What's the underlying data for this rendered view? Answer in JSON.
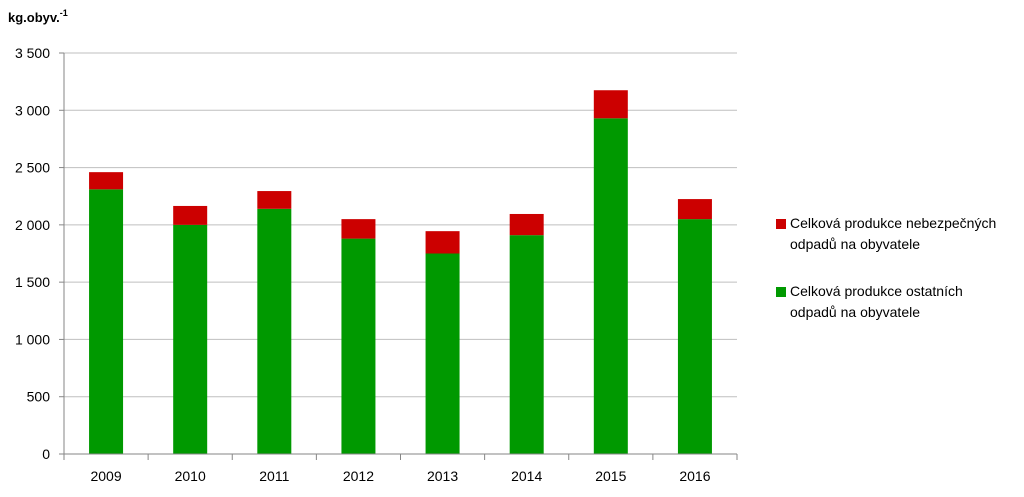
{
  "chart_data": {
    "type": "bar",
    "stacked": true,
    "ylabel": "kg.obyv.",
    "ylabel_superscript": "-1",
    "categories": [
      "2009",
      "2010",
      "2011",
      "2012",
      "2013",
      "2014",
      "2015",
      "2016"
    ],
    "series": [
      {
        "name_lines": [
          "Celková produkce ostatních",
          "odpadů na obyvatele"
        ],
        "color": "#009900",
        "values": [
          2310,
          2000,
          2140,
          1880,
          1750,
          1910,
          2930,
          2050
        ]
      },
      {
        "name_lines": [
          "Celková produkce nebezpečných",
          "odpadů na obyvatele"
        ],
        "color": "#cc0000",
        "values": [
          150,
          165,
          155,
          170,
          195,
          185,
          245,
          175
        ]
      }
    ],
    "ylim": [
      0,
      3500
    ],
    "yticks": [
      0,
      500,
      1000,
      1500,
      2000,
      2500,
      3000,
      3500
    ],
    "ytick_labels": [
      "0",
      "500",
      "1 000",
      "1 500",
      "2 000",
      "2 500",
      "3 000",
      "3 500"
    ],
    "grid": true,
    "legend_position": "right"
  }
}
